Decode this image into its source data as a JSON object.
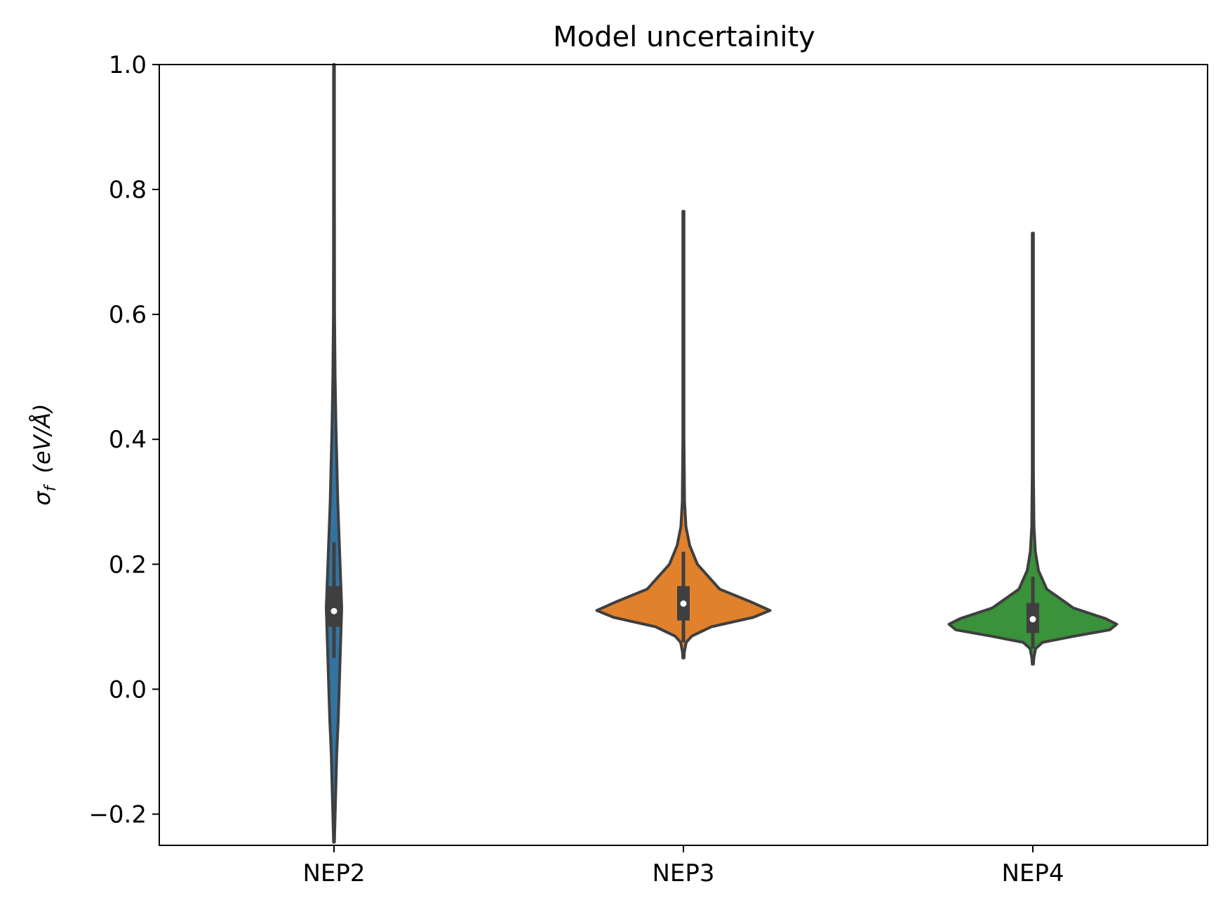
{
  "chart_data": {
    "type": "violin",
    "title": "Model uncertainity",
    "ylabel_symbol": "σ",
    "ylabel_subscript": "f",
    "ylabel_unit": "(eV/Å)",
    "ylim": [
      -0.25,
      1.0
    ],
    "yticks": [
      -0.2,
      0.0,
      0.2,
      0.4,
      0.6,
      0.8,
      1.0
    ],
    "ytick_labels": [
      "−0.2",
      "0.0",
      "0.2",
      "0.4",
      "0.6",
      "0.8",
      "1.0"
    ],
    "categories": [
      "NEP2",
      "NEP3",
      "NEP4"
    ],
    "grid": false,
    "violins": [
      {
        "category": "NEP2",
        "color": "#3274a1",
        "min": -0.245,
        "max": 1.0,
        "q1": 0.1,
        "median": 0.125,
        "q3": 0.165,
        "whisker_low": 0.05,
        "whisker_high": 0.235,
        "profile": [
          [
            -0.245,
            0.003
          ],
          [
            -0.1,
            0.02
          ],
          [
            -0.05,
            0.03
          ],
          [
            0.13,
            0.055
          ],
          [
            0.3,
            0.027
          ],
          [
            0.42,
            0.014
          ],
          [
            0.5,
            0.008
          ],
          [
            0.6,
            0.004
          ],
          [
            0.8,
            0.003
          ],
          [
            1.0,
            0.003
          ]
        ]
      },
      {
        "category": "NEP3",
        "color": "#e1812c",
        "min": 0.05,
        "max": 0.765,
        "q1": 0.11,
        "median": 0.137,
        "q3": 0.165,
        "whisker_low": 0.075,
        "whisker_high": 0.22,
        "profile": [
          [
            0.05,
            0.004
          ],
          [
            0.06,
            0.007
          ],
          [
            0.075,
            0.02
          ],
          [
            0.085,
            0.06
          ],
          [
            0.1,
            0.2
          ],
          [
            0.115,
            0.5
          ],
          [
            0.126,
            0.62
          ],
          [
            0.14,
            0.48
          ],
          [
            0.16,
            0.26
          ],
          [
            0.2,
            0.1
          ],
          [
            0.23,
            0.045
          ],
          [
            0.26,
            0.018
          ],
          [
            0.3,
            0.008
          ],
          [
            0.4,
            0.004
          ],
          [
            0.6,
            0.004
          ],
          [
            0.765,
            0.004
          ]
        ]
      },
      {
        "category": "NEP4",
        "color": "#3a923a",
        "min": 0.04,
        "max": 0.73,
        "q1": 0.09,
        "median": 0.112,
        "q3": 0.138,
        "whisker_low": 0.065,
        "whisker_high": 0.18,
        "profile": [
          [
            0.04,
            0.004
          ],
          [
            0.05,
            0.007
          ],
          [
            0.065,
            0.02
          ],
          [
            0.075,
            0.07
          ],
          [
            0.085,
            0.3
          ],
          [
            0.095,
            0.55
          ],
          [
            0.104,
            0.6
          ],
          [
            0.113,
            0.52
          ],
          [
            0.13,
            0.29
          ],
          [
            0.16,
            0.1
          ],
          [
            0.19,
            0.04
          ],
          [
            0.22,
            0.018
          ],
          [
            0.26,
            0.008
          ],
          [
            0.35,
            0.004
          ],
          [
            0.73,
            0.004
          ]
        ]
      }
    ]
  }
}
